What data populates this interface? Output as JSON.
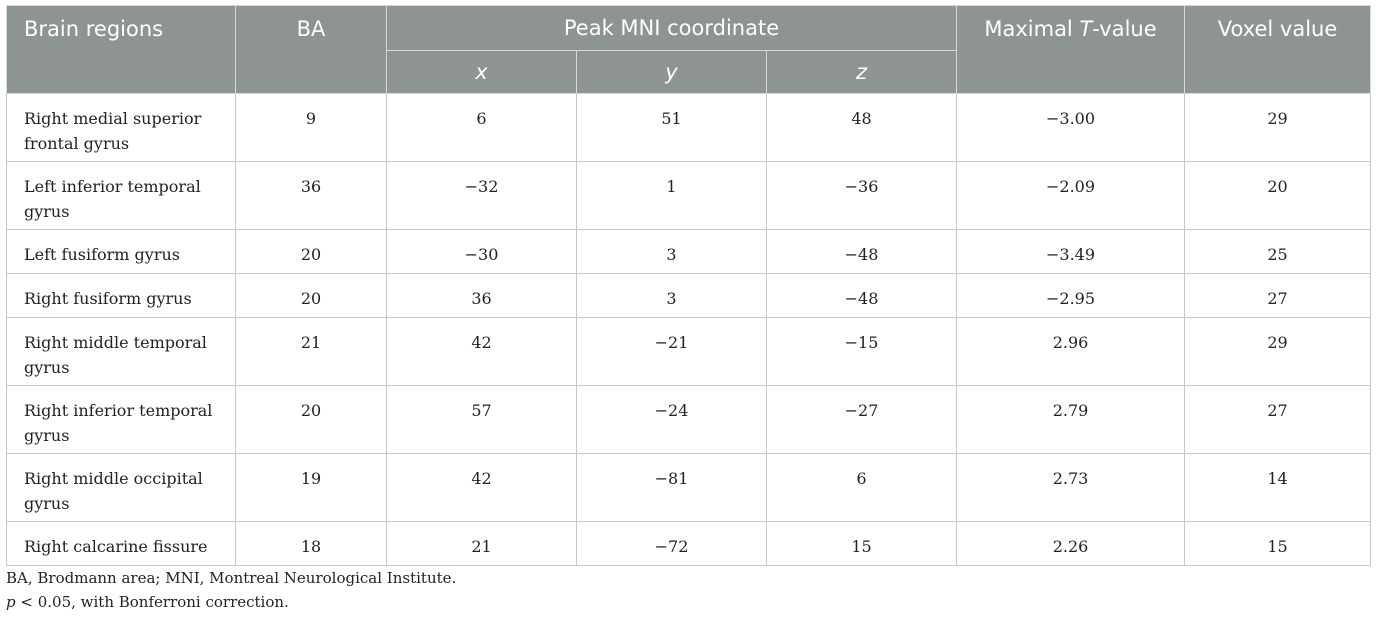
{
  "header": {
    "brain_regions": "Brain regions",
    "ba": "BA",
    "peak": "Peak MNI coordinate",
    "maximal_prefix": "Maximal ",
    "maximal_t": "T",
    "maximal_suffix": "-value",
    "voxel": "Voxel value",
    "x": "x",
    "y": "y",
    "z": "z"
  },
  "rows": [
    {
      "region": "Right medial superior frontal gyrus",
      "ba": "9",
      "x": "6",
      "y": "51",
      "z": "48",
      "t": "−3.00",
      "voxel": "29"
    },
    {
      "region": "Left inferior temporal gyrus",
      "ba": "36",
      "x": "−32",
      "y": "1",
      "z": "−36",
      "t": "−2.09",
      "voxel": "20"
    },
    {
      "region": "Left fusiform gyrus",
      "ba": "20",
      "x": "−30",
      "y": "3",
      "z": "−48",
      "t": "−3.49",
      "voxel": "25"
    },
    {
      "region": "Right fusiform gyrus",
      "ba": "20",
      "x": "36",
      "y": "3",
      "z": "−48",
      "t": "−2.95",
      "voxel": "27"
    },
    {
      "region": "Right middle temporal gyrus",
      "ba": "21",
      "x": "42",
      "y": "−21",
      "z": "−15",
      "t": "2.96",
      "voxel": "29"
    },
    {
      "region": "Right inferior temporal gyrus",
      "ba": "20",
      "x": "57",
      "y": "−24",
      "z": "−27",
      "t": "2.79",
      "voxel": "27"
    },
    {
      "region": "Right middle occipital gyrus",
      "ba": "19",
      "x": "42",
      "y": "−81",
      "z": "6",
      "t": "2.73",
      "voxel": "14"
    },
    {
      "region": "Right calcarine fissure",
      "ba": "18",
      "x": "21",
      "y": "−72",
      "z": "15",
      "t": "2.26",
      "voxel": "15"
    }
  ],
  "notes": {
    "line1": "BA, Brodmann area; MNI, Montreal Neurological Institute.",
    "line2_p": "p",
    "line2_rest": " < 0.05, with Bonferroni correction."
  }
}
